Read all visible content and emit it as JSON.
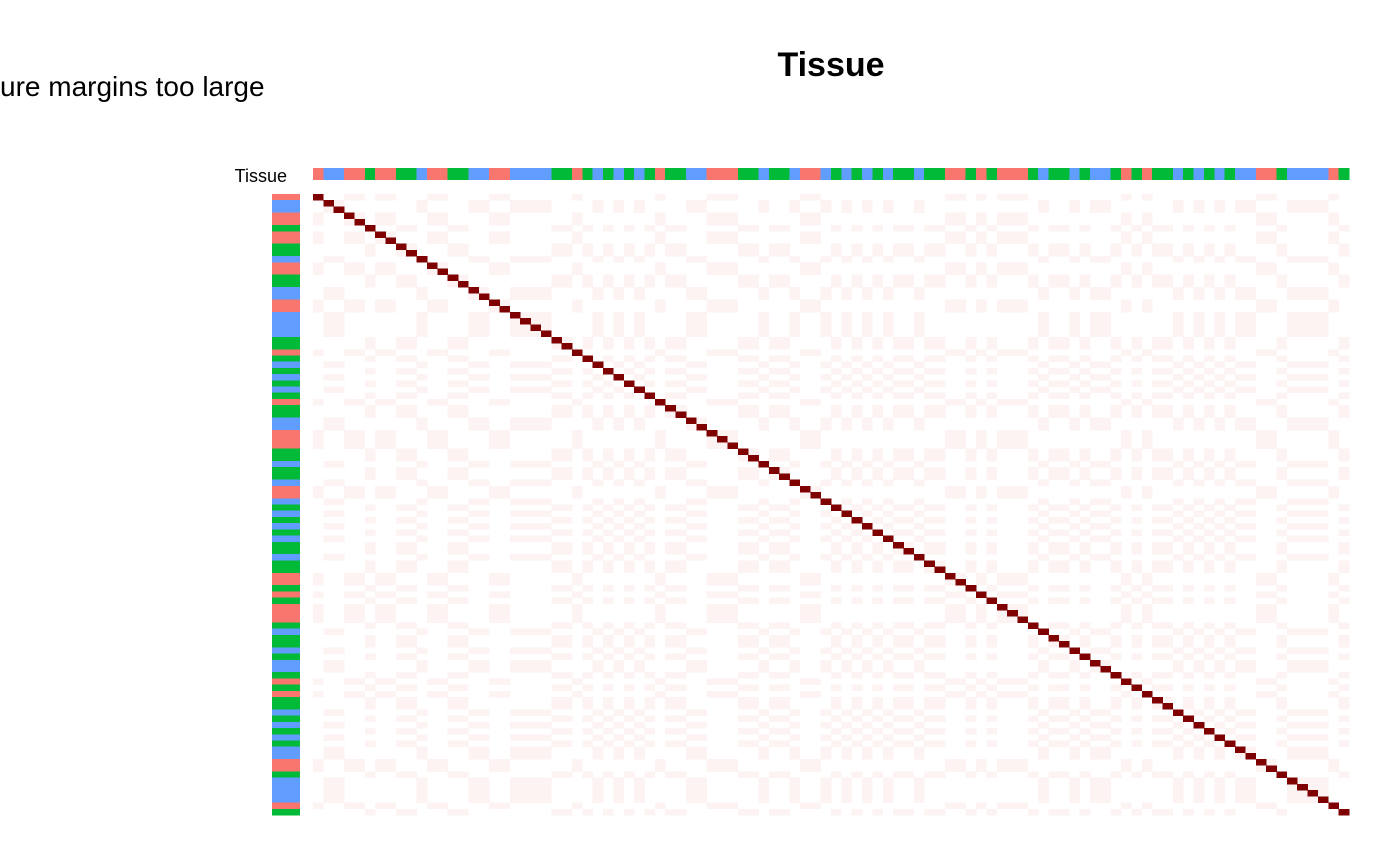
{
  "warning_text": "ure margins too large",
  "chart_data": {
    "type": "heatmap",
    "title": "Tissue",
    "annotation_label": "Tissue",
    "n_samples": 100,
    "colors": {
      "diagonal": "#7f0000",
      "background": "#ffffff",
      "faint_cell": "#fdf3f3",
      "tissue_palette": [
        "#f8766d",
        "#00ba38",
        "#619cff"
      ]
    },
    "tissue_groups": [
      0,
      2,
      2,
      0,
      0,
      1,
      0,
      0,
      1,
      1,
      2,
      0,
      0,
      1,
      1,
      2,
      2,
      0,
      0,
      2,
      2,
      2,
      2,
      1,
      1,
      0,
      1,
      2,
      1,
      2,
      1,
      2,
      1,
      0,
      1,
      1,
      2,
      2,
      0,
      0,
      0,
      1,
      1,
      2,
      1,
      1,
      2,
      0,
      0,
      2,
      1,
      2,
      1,
      2,
      1,
      2,
      1,
      1,
      2,
      1,
      1,
      0,
      0,
      1,
      0,
      1,
      0,
      0,
      0,
      1,
      2,
      1,
      1,
      2,
      1,
      2,
      2,
      1,
      0,
      1,
      0,
      1,
      1,
      2,
      1,
      2,
      1,
      2,
      1,
      2,
      2,
      0,
      0,
      1,
      2,
      2,
      2,
      2,
      0,
      1
    ],
    "diagonal_value": 1
  }
}
